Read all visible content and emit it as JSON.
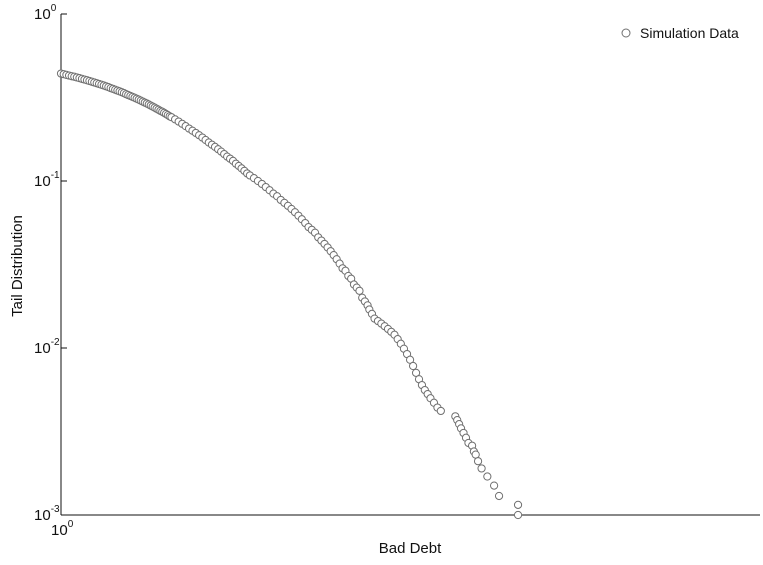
{
  "chart_data": {
    "type": "scatter",
    "title": "",
    "xlabel": "Bad Debt",
    "ylabel": "Tail Distribution",
    "xscale": "log",
    "yscale": "log",
    "xlim": [
      1,
      13
    ],
    "ylim": [
      0.001,
      1
    ],
    "grid": false,
    "legend_position": "top-right",
    "marker": "open-circle",
    "marker_color": "#6f6f6f",
    "x_ticks": [
      {
        "value": 1,
        "base": "10",
        "exp": "0"
      }
    ],
    "y_ticks": [
      {
        "value": 1,
        "base": "10",
        "exp": "0"
      },
      {
        "value": 0.1,
        "base": "10",
        "exp": "-1"
      },
      {
        "value": 0.01,
        "base": "10",
        "exp": "-2"
      },
      {
        "value": 0.001,
        "base": "10",
        "exp": "-3"
      }
    ],
    "series": [
      {
        "name": "Simulation Data",
        "points": [
          [
            1.0,
            0.44
          ],
          [
            1.01,
            0.436
          ],
          [
            1.02,
            0.432
          ],
          [
            1.03,
            0.428
          ],
          [
            1.04,
            0.424
          ],
          [
            1.05,
            0.421
          ],
          [
            1.06,
            0.417
          ],
          [
            1.07,
            0.413
          ],
          [
            1.08,
            0.409
          ],
          [
            1.09,
            0.405
          ],
          [
            1.1,
            0.401
          ],
          [
            1.11,
            0.397
          ],
          [
            1.12,
            0.393
          ],
          [
            1.13,
            0.389
          ],
          [
            1.14,
            0.385
          ],
          [
            1.15,
            0.381
          ],
          [
            1.16,
            0.377
          ],
          [
            1.17,
            0.373
          ],
          [
            1.18,
            0.369
          ],
          [
            1.19,
            0.365
          ],
          [
            1.2,
            0.36
          ],
          [
            1.21,
            0.356
          ],
          [
            1.22,
            0.352
          ],
          [
            1.23,
            0.348
          ],
          [
            1.24,
            0.344
          ],
          [
            1.25,
            0.34
          ],
          [
            1.26,
            0.336
          ],
          [
            1.27,
            0.331
          ],
          [
            1.28,
            0.327
          ],
          [
            1.29,
            0.323
          ],
          [
            1.3,
            0.319
          ],
          [
            1.31,
            0.315
          ],
          [
            1.32,
            0.311
          ],
          [
            1.33,
            0.307
          ],
          [
            1.34,
            0.303
          ],
          [
            1.35,
            0.299
          ],
          [
            1.36,
            0.295
          ],
          [
            1.37,
            0.291
          ],
          [
            1.38,
            0.287
          ],
          [
            1.39,
            0.283
          ],
          [
            1.4,
            0.279
          ],
          [
            1.41,
            0.275
          ],
          [
            1.42,
            0.271
          ],
          [
            1.43,
            0.267
          ],
          [
            1.44,
            0.263
          ],
          [
            1.45,
            0.26
          ],
          [
            1.46,
            0.256
          ],
          [
            1.47,
            0.252
          ],
          [
            1.48,
            0.248
          ],
          [
            1.49,
            0.244
          ],
          [
            1.5,
            0.241
          ],
          [
            1.52,
            0.234
          ],
          [
            1.54,
            0.227
          ],
          [
            1.56,
            0.22
          ],
          [
            1.58,
            0.213
          ],
          [
            1.6,
            0.206
          ],
          [
            1.62,
            0.2
          ],
          [
            1.64,
            0.194
          ],
          [
            1.66,
            0.188
          ],
          [
            1.68,
            0.182
          ],
          [
            1.7,
            0.176
          ],
          [
            1.72,
            0.17
          ],
          [
            1.74,
            0.165
          ],
          [
            1.76,
            0.16
          ],
          [
            1.78,
            0.155
          ],
          [
            1.8,
            0.15
          ],
          [
            1.82,
            0.145
          ],
          [
            1.84,
            0.14
          ],
          [
            1.86,
            0.136
          ],
          [
            1.88,
            0.132
          ],
          [
            1.9,
            0.127
          ],
          [
            1.92,
            0.123
          ],
          [
            1.94,
            0.119
          ],
          [
            1.96,
            0.115
          ],
          [
            1.98,
            0.111
          ],
          [
            2.0,
            0.108
          ],
          [
            2.03,
            0.104
          ],
          [
            2.06,
            0.1
          ],
          [
            2.09,
            0.096
          ],
          [
            2.12,
            0.092
          ],
          [
            2.15,
            0.088
          ],
          [
            2.18,
            0.084
          ],
          [
            2.21,
            0.081
          ],
          [
            2.24,
            0.077
          ],
          [
            2.27,
            0.074
          ],
          [
            2.3,
            0.071
          ],
          [
            2.33,
            0.068
          ],
          [
            2.36,
            0.065
          ],
          [
            2.39,
            0.062
          ],
          [
            2.42,
            0.059
          ],
          [
            2.45,
            0.056
          ],
          [
            2.48,
            0.053
          ],
          [
            2.51,
            0.051
          ],
          [
            2.54,
            0.049
          ],
          [
            2.57,
            0.046
          ],
          [
            2.6,
            0.044
          ],
          [
            2.63,
            0.042
          ],
          [
            2.66,
            0.04
          ],
          [
            2.69,
            0.038
          ],
          [
            2.72,
            0.036
          ],
          [
            2.75,
            0.034
          ],
          [
            2.78,
            0.032
          ],
          [
            2.81,
            0.03
          ],
          [
            2.84,
            0.029
          ],
          [
            2.87,
            0.027
          ],
          [
            2.9,
            0.026
          ],
          [
            2.93,
            0.024
          ],
          [
            2.96,
            0.023
          ],
          [
            2.99,
            0.022
          ],
          [
            3.02,
            0.02
          ],
          [
            3.05,
            0.019
          ],
          [
            3.08,
            0.018
          ],
          [
            3.1,
            0.017
          ],
          [
            3.13,
            0.016
          ],
          [
            3.16,
            0.015
          ],
          [
            3.2,
            0.0145
          ],
          [
            3.24,
            0.014
          ],
          [
            3.28,
            0.0135
          ],
          [
            3.32,
            0.013
          ],
          [
            3.36,
            0.0125
          ],
          [
            3.4,
            0.012
          ],
          [
            3.44,
            0.0113
          ],
          [
            3.48,
            0.0106
          ],
          [
            3.52,
            0.0099
          ],
          [
            3.56,
            0.0092
          ],
          [
            3.6,
            0.0085
          ],
          [
            3.64,
            0.0078
          ],
          [
            3.68,
            0.0071
          ],
          [
            3.72,
            0.0065
          ],
          [
            3.76,
            0.006
          ],
          [
            3.8,
            0.0056
          ],
          [
            3.84,
            0.0053
          ],
          [
            3.88,
            0.005
          ],
          [
            3.93,
            0.0047
          ],
          [
            3.98,
            0.0044
          ],
          [
            4.03,
            0.0042
          ],
          [
            4.25,
            0.0039
          ],
          [
            4.28,
            0.0037
          ],
          [
            4.31,
            0.0035
          ],
          [
            4.34,
            0.0033
          ],
          [
            4.38,
            0.0031
          ],
          [
            4.42,
            0.0029
          ],
          [
            4.46,
            0.0027
          ],
          [
            4.52,
            0.0026
          ],
          [
            4.55,
            0.0024
          ],
          [
            4.58,
            0.0023
          ],
          [
            4.62,
            0.0021
          ],
          [
            4.68,
            0.0019
          ],
          [
            4.78,
            0.0017
          ],
          [
            4.9,
            0.0015
          ],
          [
            4.99,
            0.0013
          ],
          [
            5.35,
            0.00115
          ],
          [
            5.35,
            0.001
          ]
        ]
      }
    ]
  }
}
